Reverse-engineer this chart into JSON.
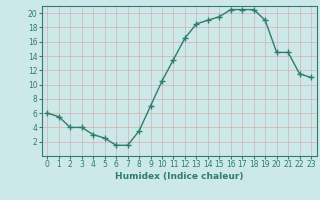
{
  "x": [
    0,
    1,
    2,
    3,
    4,
    5,
    6,
    7,
    8,
    9,
    10,
    11,
    12,
    13,
    14,
    15,
    16,
    17,
    18,
    19,
    20,
    21,
    22,
    23
  ],
  "y": [
    6,
    5.5,
    4,
    4,
    3,
    2.5,
    1.5,
    1.5,
    3.5,
    7,
    10.5,
    13.5,
    16.5,
    18.5,
    19,
    19.5,
    20.5,
    20.5,
    20.5,
    19,
    14.5,
    14.5,
    11.5,
    11
  ],
  "line_color": "#2e7d6e",
  "marker": "+",
  "marker_size": 4,
  "marker_lw": 1.0,
  "line_width": 1.0,
  "bg_color": "#cce8e8",
  "grid_color": "#b8d8d8",
  "xlabel": "Humidex (Indice chaleur)",
  "xlim": [
    -0.5,
    23.5
  ],
  "ylim": [
    0,
    21
  ],
  "yticks": [
    2,
    4,
    6,
    8,
    10,
    12,
    14,
    16,
    18,
    20
  ],
  "xticks": [
    0,
    1,
    2,
    3,
    4,
    5,
    6,
    7,
    8,
    9,
    10,
    11,
    12,
    13,
    14,
    15,
    16,
    17,
    18,
    19,
    20,
    21,
    22,
    23
  ],
  "label_fontsize": 6.5,
  "tick_fontsize": 5.5
}
